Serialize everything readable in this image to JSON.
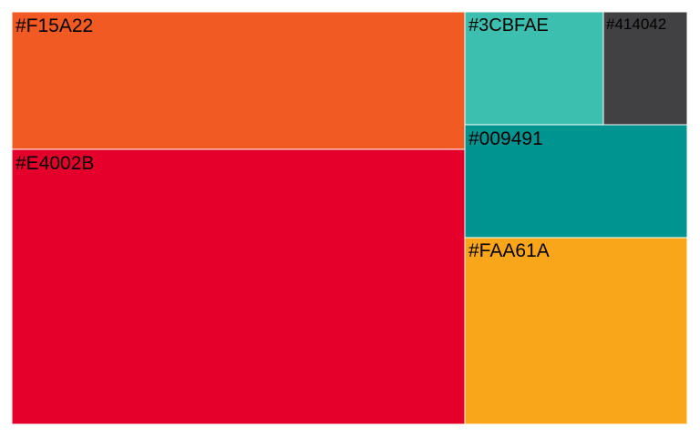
{
  "chart_data": {
    "type": "treemap",
    "title": "",
    "tiles": [
      {
        "label": "#F15A22",
        "color": "#F15A22",
        "value": 75
      },
      {
        "label": "#E4002B",
        "color": "#E4002B",
        "value": 150
      },
      {
        "label": "#3CBFAE",
        "color": "#3CBFAE",
        "value": 19
      },
      {
        "label": "#414042",
        "color": "#414042",
        "value": 12
      },
      {
        "label": "#009491",
        "color": "#009491",
        "value": 30
      },
      {
        "label": "#FAA61A",
        "color": "#FAA61A",
        "value": 74
      }
    ]
  }
}
